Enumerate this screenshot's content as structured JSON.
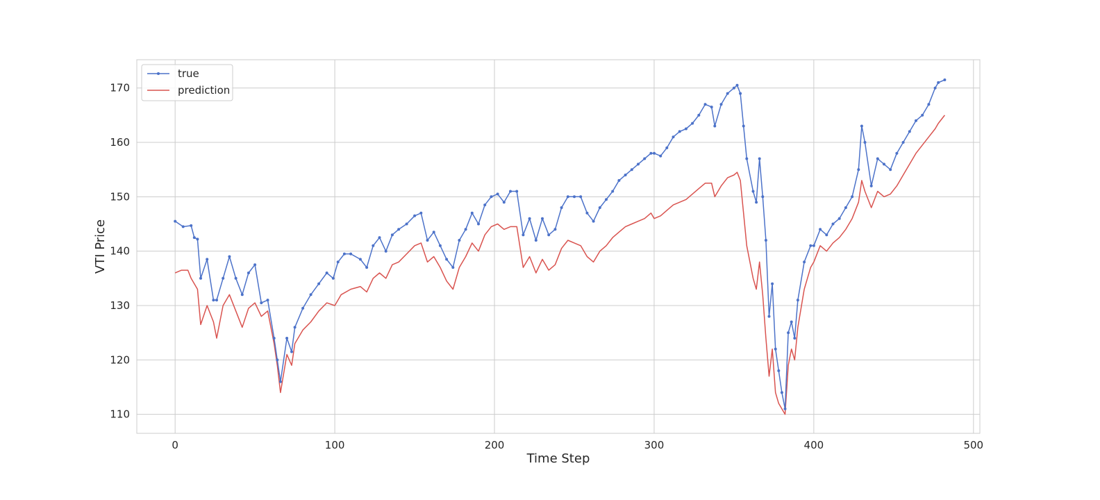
{
  "chart_data": {
    "type": "line",
    "title": "",
    "xlabel": "Time Step",
    "ylabel": "VTI Price",
    "xlim": [
      -24,
      504
    ],
    "ylim": [
      106.5,
      175.2
    ],
    "xticks": [
      0,
      100,
      200,
      300,
      400,
      500
    ],
    "yticks": [
      110,
      120,
      130,
      140,
      150,
      160,
      170
    ],
    "grid": true,
    "legend_position": "top-left",
    "colors": {
      "true": "#4c72c9",
      "prediction": "#d9534f",
      "grid": "#cccccc",
      "frame": "#cccccc"
    },
    "series": [
      {
        "name": "true",
        "marker": "point",
        "points": [
          [
            0,
            145.5
          ],
          [
            5,
            144.5
          ],
          [
            10,
            144.7
          ],
          [
            12,
            142.5
          ],
          [
            14,
            142.2
          ],
          [
            16,
            135
          ],
          [
            20,
            138.5
          ],
          [
            24,
            131
          ],
          [
            26,
            131
          ],
          [
            30,
            135
          ],
          [
            34,
            139
          ],
          [
            38,
            135
          ],
          [
            42,
            132
          ],
          [
            46,
            136
          ],
          [
            50,
            137.5
          ],
          [
            54,
            130.5
          ],
          [
            58,
            131
          ],
          [
            62,
            124
          ],
          [
            64,
            120
          ],
          [
            66,
            116
          ],
          [
            70,
            124
          ],
          [
            73,
            121.5
          ],
          [
            75,
            126
          ],
          [
            80,
            129.5
          ],
          [
            85,
            132
          ],
          [
            90,
            134
          ],
          [
            95,
            136
          ],
          [
            99,
            135
          ],
          [
            102,
            138
          ],
          [
            106,
            139.5
          ],
          [
            110,
            139.5
          ],
          [
            116,
            138.5
          ],
          [
            120,
            137
          ],
          [
            124,
            141
          ],
          [
            128,
            142.5
          ],
          [
            132,
            140
          ],
          [
            136,
            143
          ],
          [
            140,
            144
          ],
          [
            145,
            145
          ],
          [
            150,
            146.5
          ],
          [
            154,
            147
          ],
          [
            158,
            142
          ],
          [
            162,
            143.5
          ],
          [
            166,
            141
          ],
          [
            170,
            138.5
          ],
          [
            174,
            137
          ],
          [
            178,
            142
          ],
          [
            182,
            144
          ],
          [
            186,
            147
          ],
          [
            190,
            145
          ],
          [
            194,
            148.5
          ],
          [
            198,
            150
          ],
          [
            202,
            150.5
          ],
          [
            206,
            149
          ],
          [
            210,
            151
          ],
          [
            214,
            151
          ],
          [
            218,
            143
          ],
          [
            222,
            146
          ],
          [
            226,
            142
          ],
          [
            230,
            146
          ],
          [
            234,
            143
          ],
          [
            238,
            144
          ],
          [
            242,
            148
          ],
          [
            246,
            150
          ],
          [
            250,
            150
          ],
          [
            254,
            150
          ],
          [
            258,
            147
          ],
          [
            262,
            145.5
          ],
          [
            266,
            148
          ],
          [
            270,
            149.5
          ],
          [
            274,
            151
          ],
          [
            278,
            153
          ],
          [
            282,
            154
          ],
          [
            286,
            155
          ],
          [
            290,
            156
          ],
          [
            294,
            157
          ],
          [
            298,
            158
          ],
          [
            300,
            158
          ],
          [
            304,
            157.5
          ],
          [
            308,
            159
          ],
          [
            312,
            161
          ],
          [
            316,
            162
          ],
          [
            320,
            162.5
          ],
          [
            324,
            163.5
          ],
          [
            328,
            165
          ],
          [
            332,
            167
          ],
          [
            336,
            166.5
          ],
          [
            338,
            163
          ],
          [
            342,
            167
          ],
          [
            346,
            169
          ],
          [
            350,
            170
          ],
          [
            352,
            170.5
          ],
          [
            354,
            169
          ],
          [
            356,
            163
          ],
          [
            358,
            157
          ],
          [
            362,
            151
          ],
          [
            364,
            149
          ],
          [
            366,
            157
          ],
          [
            368,
            150
          ],
          [
            370,
            142
          ],
          [
            372,
            128
          ],
          [
            374,
            134
          ],
          [
            376,
            122
          ],
          [
            378,
            118
          ],
          [
            380,
            114
          ],
          [
            382,
            111
          ],
          [
            384,
            125
          ],
          [
            386,
            127
          ],
          [
            388,
            124
          ],
          [
            390,
            131
          ],
          [
            394,
            138
          ],
          [
            398,
            141
          ],
          [
            400,
            141
          ],
          [
            404,
            144
          ],
          [
            408,
            143
          ],
          [
            412,
            145
          ],
          [
            416,
            146
          ],
          [
            420,
            148
          ],
          [
            424,
            150
          ],
          [
            428,
            155
          ],
          [
            430,
            163
          ],
          [
            432,
            160
          ],
          [
            436,
            152
          ],
          [
            440,
            157
          ],
          [
            444,
            156
          ],
          [
            448,
            155
          ],
          [
            452,
            158
          ],
          [
            456,
            160
          ],
          [
            460,
            162
          ],
          [
            464,
            164
          ],
          [
            468,
            165
          ],
          [
            472,
            167
          ],
          [
            476,
            170
          ],
          [
            478,
            171
          ],
          [
            482,
            171.5
          ]
        ]
      },
      {
        "name": "prediction",
        "marker": "none",
        "points": [
          [
            0,
            136
          ],
          [
            4,
            136.5
          ],
          [
            8,
            136.5
          ],
          [
            10,
            135
          ],
          [
            14,
            133
          ],
          [
            16,
            126.5
          ],
          [
            20,
            130
          ],
          [
            24,
            127
          ],
          [
            26,
            124
          ],
          [
            30,
            130
          ],
          [
            34,
            132
          ],
          [
            38,
            129
          ],
          [
            42,
            126
          ],
          [
            46,
            129.5
          ],
          [
            50,
            130.5
          ],
          [
            54,
            128
          ],
          [
            58,
            129
          ],
          [
            62,
            123
          ],
          [
            64,
            119
          ],
          [
            66,
            114
          ],
          [
            70,
            121
          ],
          [
            73,
            119
          ],
          [
            75,
            123
          ],
          [
            80,
            125.5
          ],
          [
            85,
            127
          ],
          [
            90,
            129
          ],
          [
            95,
            130.5
          ],
          [
            100,
            130
          ],
          [
            104,
            132
          ],
          [
            110,
            133
          ],
          [
            116,
            133.5
          ],
          [
            120,
            132.5
          ],
          [
            124,
            135
          ],
          [
            128,
            136
          ],
          [
            132,
            135
          ],
          [
            136,
            137.5
          ],
          [
            140,
            138
          ],
          [
            145,
            139.5
          ],
          [
            150,
            141
          ],
          [
            154,
            141.5
          ],
          [
            158,
            138
          ],
          [
            162,
            139
          ],
          [
            166,
            137
          ],
          [
            170,
            134.5
          ],
          [
            174,
            133
          ],
          [
            178,
            137
          ],
          [
            182,
            139
          ],
          [
            186,
            141.5
          ],
          [
            190,
            140
          ],
          [
            194,
            143
          ],
          [
            198,
            144.5
          ],
          [
            202,
            145
          ],
          [
            206,
            144
          ],
          [
            210,
            144.5
          ],
          [
            214,
            144.5
          ],
          [
            218,
            137
          ],
          [
            222,
            139
          ],
          [
            226,
            136
          ],
          [
            230,
            138.5
          ],
          [
            234,
            136.5
          ],
          [
            238,
            137.5
          ],
          [
            242,
            140.5
          ],
          [
            246,
            142
          ],
          [
            250,
            141.5
          ],
          [
            254,
            141
          ],
          [
            258,
            139
          ],
          [
            262,
            138
          ],
          [
            266,
            140
          ],
          [
            270,
            141
          ],
          [
            274,
            142.5
          ],
          [
            278,
            143.5
          ],
          [
            282,
            144.5
          ],
          [
            286,
            145
          ],
          [
            290,
            145.5
          ],
          [
            294,
            146
          ],
          [
            298,
            147
          ],
          [
            300,
            146
          ],
          [
            304,
            146.5
          ],
          [
            308,
            147.5
          ],
          [
            312,
            148.5
          ],
          [
            316,
            149
          ],
          [
            320,
            149.5
          ],
          [
            324,
            150.5
          ],
          [
            328,
            151.5
          ],
          [
            332,
            152.5
          ],
          [
            336,
            152.5
          ],
          [
            338,
            150
          ],
          [
            342,
            152
          ],
          [
            346,
            153.5
          ],
          [
            350,
            154
          ],
          [
            352,
            154.5
          ],
          [
            354,
            153
          ],
          [
            356,
            147
          ],
          [
            358,
            141
          ],
          [
            362,
            135
          ],
          [
            364,
            133
          ],
          [
            366,
            138
          ],
          [
            368,
            132
          ],
          [
            370,
            124
          ],
          [
            372,
            117
          ],
          [
            374,
            122
          ],
          [
            376,
            114
          ],
          [
            378,
            112
          ],
          [
            380,
            111
          ],
          [
            382,
            110
          ],
          [
            384,
            119
          ],
          [
            386,
            122
          ],
          [
            388,
            120
          ],
          [
            390,
            126
          ],
          [
            394,
            133
          ],
          [
            398,
            137
          ],
          [
            400,
            138
          ],
          [
            404,
            141
          ],
          [
            408,
            140
          ],
          [
            412,
            141.5
          ],
          [
            416,
            142.5
          ],
          [
            420,
            144
          ],
          [
            424,
            146
          ],
          [
            428,
            149
          ],
          [
            430,
            153
          ],
          [
            432,
            151
          ],
          [
            436,
            148
          ],
          [
            440,
            151
          ],
          [
            444,
            150
          ],
          [
            448,
            150.5
          ],
          [
            452,
            152
          ],
          [
            456,
            154
          ],
          [
            460,
            156
          ],
          [
            464,
            158
          ],
          [
            468,
            159.5
          ],
          [
            472,
            161
          ],
          [
            476,
            162.5
          ],
          [
            478,
            163.5
          ],
          [
            482,
            165
          ]
        ]
      }
    ]
  }
}
